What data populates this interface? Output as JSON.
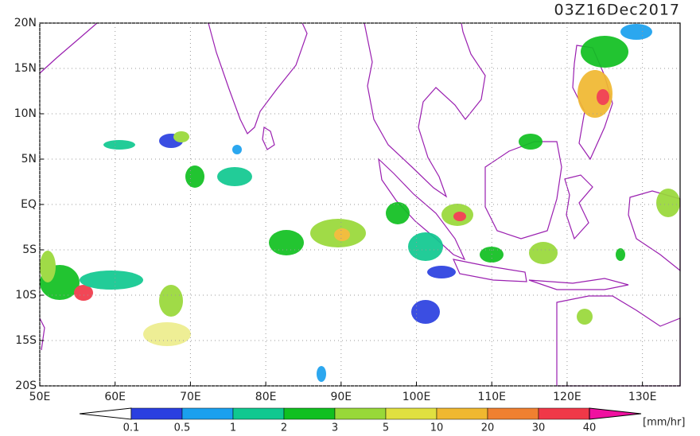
{
  "title": "03Z16Dec2017",
  "map": {
    "xlim": [
      50,
      135
    ],
    "ylim": [
      -20,
      20
    ],
    "xticks": [
      {
        "value": 50,
        "label": "50E"
      },
      {
        "value": 60,
        "label": "60E"
      },
      {
        "value": 70,
        "label": "70E"
      },
      {
        "value": 80,
        "label": "80E"
      },
      {
        "value": 90,
        "label": "90E"
      },
      {
        "value": 100,
        "label": "100E"
      },
      {
        "value": 110,
        "label": "110E"
      },
      {
        "value": 120,
        "label": "120E"
      },
      {
        "value": 130,
        "label": "130E"
      }
    ],
    "yticks": [
      {
        "value": 20,
        "label": "20N"
      },
      {
        "value": 15,
        "label": "15N"
      },
      {
        "value": 10,
        "label": "10N"
      },
      {
        "value": 5,
        "label": "5N"
      },
      {
        "value": 0,
        "label": "EQ"
      },
      {
        "value": -5,
        "label": "5S"
      },
      {
        "value": -10,
        "label": "10S"
      },
      {
        "value": -15,
        "label": "15S"
      },
      {
        "value": -20,
        "label": "20S"
      }
    ]
  },
  "colorbar": {
    "levels": [
      0.1,
      0.5,
      1,
      2,
      3,
      5,
      10,
      20,
      30,
      40
    ],
    "colors": [
      "#ffffff",
      "#2a3fe0",
      "#1aa0ee",
      "#10c890",
      "#10c020",
      "#98d838",
      "#e0e040",
      "#f0b830",
      "#f08030",
      "#f03848",
      "#f010a0"
    ],
    "unit": "[mm/hr]"
  }
}
